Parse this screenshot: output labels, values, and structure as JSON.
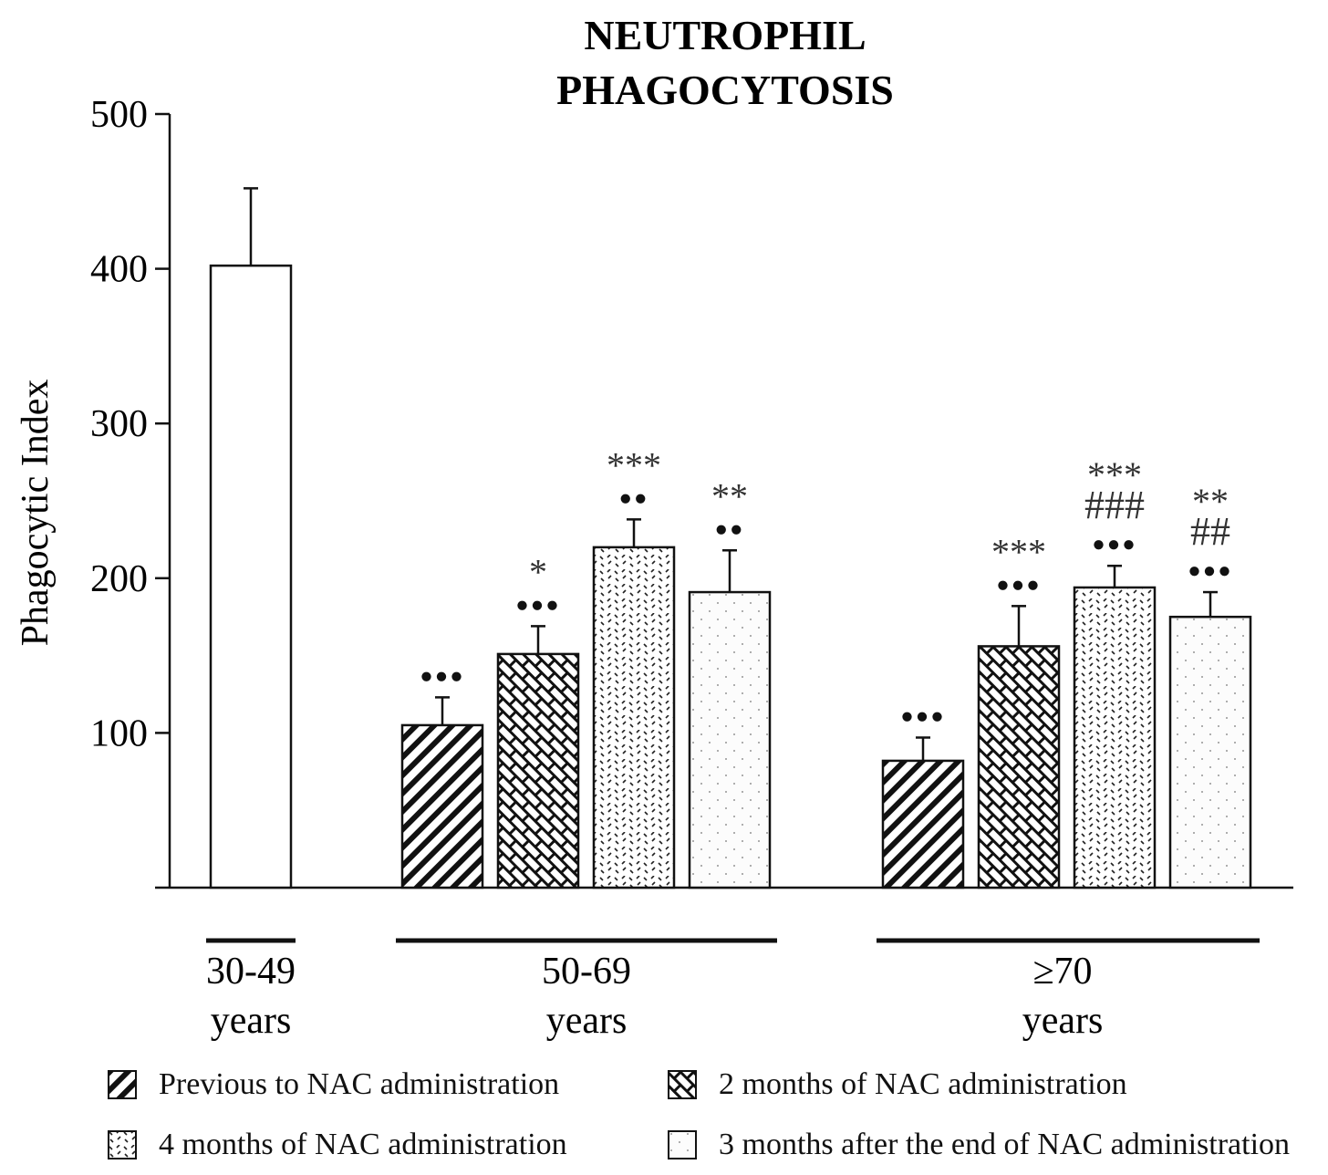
{
  "chart_data": {
    "type": "bar",
    "title_lines": [
      "NEUTROPHIL",
      "PHAGOCYTOSIS"
    ],
    "ylabel": "Phagocytic Index",
    "xlabel": "",
    "ylim": [
      0,
      500
    ],
    "yticks": [
      100,
      200,
      300,
      400,
      500
    ],
    "grid": false,
    "groups": [
      {
        "label_lines": [
          "30-49",
          "years"
        ],
        "bars": [
          {
            "series": "control",
            "value": 402,
            "error": 50,
            "marks": []
          }
        ]
      },
      {
        "label_lines": [
          "50-69",
          "years"
        ],
        "bars": [
          {
            "series": "previous",
            "value": 105,
            "error": 18,
            "marks": [
              "●●●"
            ]
          },
          {
            "series": "month2",
            "value": 151,
            "error": 18,
            "marks": [
              "●●●",
              "*"
            ]
          },
          {
            "series": "month4",
            "value": 220,
            "error": 18,
            "marks": [
              "●●",
              "***"
            ]
          },
          {
            "series": "after3",
            "value": 191,
            "error": 27,
            "marks": [
              "●●",
              "**"
            ]
          }
        ]
      },
      {
        "label_lines": [
          "≥70",
          "years"
        ],
        "bars": [
          {
            "series": "previous",
            "value": 82,
            "error": 15,
            "marks": [
              "●●●"
            ]
          },
          {
            "series": "month2",
            "value": 156,
            "error": 26,
            "marks": [
              "●●●",
              "***"
            ]
          },
          {
            "series": "month4",
            "value": 194,
            "error": 14,
            "marks": [
              "●●●",
              "###",
              "***"
            ]
          },
          {
            "series": "after3",
            "value": 175,
            "error": 16,
            "marks": [
              "●●●",
              "##",
              "**"
            ]
          }
        ]
      }
    ],
    "legend": {
      "placement": "bottom",
      "entries": [
        {
          "key": "previous",
          "label": "Previous to NAC administration"
        },
        {
          "key": "month2",
          "label": "2 months of NAC administration"
        },
        {
          "key": "month4",
          "label": "4 months of NAC administration"
        },
        {
          "key": "after3",
          "label": "3 months after the end of NAC administration"
        }
      ]
    },
    "colors": {
      "stroke": "#111111",
      "fill": "#ffffff"
    }
  }
}
